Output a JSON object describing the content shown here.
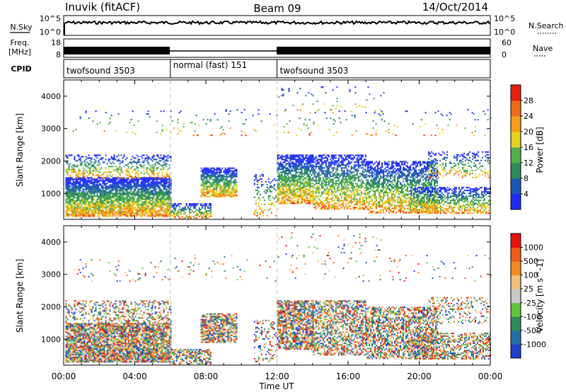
{
  "header": {
    "station": "Inuvik (fitACF)",
    "beam": "Beam 09",
    "date": "14/Oct/2014"
  },
  "summary_panels": {
    "nsky": {
      "left_label": "N.Sky",
      "left_ticks": [
        "10^5",
        "10^0"
      ],
      "right_ticks": [
        "10^5",
        "10^0"
      ],
      "right_label": "N.Search"
    },
    "freq": {
      "left_label_1": "Freq.",
      "left_label_2": "[MHz]",
      "left_ticks": [
        "18",
        "8"
      ],
      "right_ticks": [
        "60",
        "0"
      ],
      "right_label": "Nave"
    },
    "cpid": {
      "label": "CPID",
      "segments": [
        {
          "name": "twofsound 3503",
          "start_hour": 0,
          "end_hour": 6
        },
        {
          "name": "normal (fast) 151",
          "start_hour": 6,
          "end_hour": 12
        },
        {
          "name": "twofsound 3503",
          "start_hour": 12,
          "end_hour": 24
        }
      ]
    }
  },
  "x_axis": {
    "label": "Time UT",
    "ticks": [
      "00:00",
      "04:00",
      "08:00",
      "12:00",
      "16:00",
      "20:00",
      "00:00"
    ]
  },
  "chart_data": [
    {
      "type": "heatmap",
      "title": "",
      "xlabel": "Time UT",
      "ylabel": "Slant Range [km]",
      "xlim_hours": [
        0,
        24
      ],
      "ylim_km": [
        200,
        4500
      ],
      "y_ticks": [
        "1000",
        "2000",
        "3000",
        "4000"
      ],
      "colorbar": {
        "label": "Power [dB]",
        "ticks": [
          "4",
          "8",
          "12",
          "16",
          "20",
          "24",
          "28"
        ],
        "colors": [
          "#1e2cff",
          "#1c56b8",
          "#2e8c58",
          "#52b04a",
          "#e8d21a",
          "#f5a017",
          "#f26a16",
          "#e8200f"
        ]
      },
      "cpid_boundaries_hours": [
        6,
        12
      ]
    },
    {
      "type": "heatmap",
      "title": "",
      "xlabel": "Time UT",
      "ylabel": "Slant Range [km]",
      "xlim_hours": [
        0,
        24
      ],
      "ylim_km": [
        200,
        4500
      ],
      "y_ticks": [
        "1000",
        "2000",
        "3000",
        "4000"
      ],
      "colorbar": {
        "label": "Velocity [m s^-1]",
        "ticks": [
          "1000",
          "500",
          "100",
          "25",
          "-25",
          "-100",
          "-500",
          "-1000"
        ],
        "colors": [
          "#1f3fd0",
          "#1f6fa8",
          "#2e8c58",
          "#5fc43a",
          "#c8c8c8",
          "#f0c078",
          "#f58a1a",
          "#f25a16",
          "#e8140f"
        ]
      },
      "cpid_boundaries_hours": [
        6,
        12
      ]
    }
  ]
}
